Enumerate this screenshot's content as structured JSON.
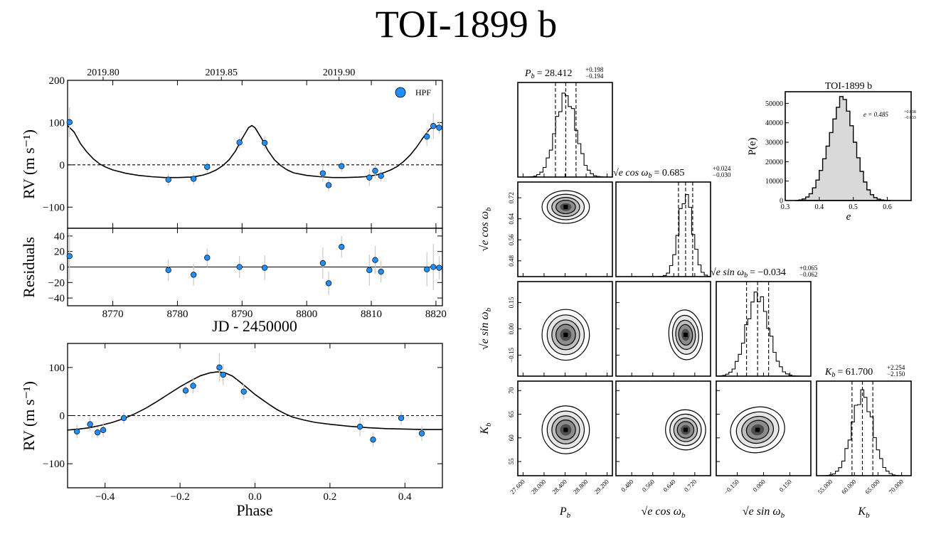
{
  "title": "TOI-1899 b",
  "colors": {
    "point": "#1e90ff",
    "model": "#000000",
    "hist_fill": "#d9d9d9",
    "error_bar": "#c8c8c8"
  },
  "labels": {
    "rv_ylabel": "RV (m s⁻¹)",
    "residuals_ylabel": "Residuals",
    "jd_xlabel": "JD - 2450000",
    "phase_xlabel": "Phase",
    "legend": "HPF",
    "e_title": "TOI-1899 b",
    "e_xlabel": "e",
    "e_ylabel": "P(e)",
    "e_annot": "e = 0.485",
    "e_sup": "+0.038",
    "e_sub": "−0.033",
    "corner_P": "P",
    "corner_K": "K",
    "corner_sub": "b",
    "corner_ecos": "√e cos ω",
    "corner_esin": "√e sin ω",
    "title_P_val": "= 28.412",
    "title_P_sup": "+0.198",
    "title_P_sub": "−0.194",
    "title_ecos_val": "= 0.685",
    "title_ecos_sup": "+0.024",
    "title_ecos_sub": "−0.030",
    "title_esin_val": "= −0.034",
    "title_esin_sup": "+0.065",
    "title_esin_sub": "−0.062",
    "title_K_val": "= 61.700",
    "title_K_sup": "+2.254",
    "title_K_sub": "−2.150"
  },
  "chart_data": [
    {
      "type": "scatter",
      "panel": "rv_time",
      "xlim": [
        8763,
        8821
      ],
      "ylim": [
        -150,
        200
      ],
      "yticks": [
        -100,
        0,
        100,
        200
      ],
      "xticks": [
        8770,
        8780,
        8790,
        8800,
        8810,
        8820
      ],
      "top_axis_ticks": [
        {
          "x": 8768.5,
          "label": "2019.80"
        },
        {
          "x": 8786.8,
          "label": "2019.85"
        },
        {
          "x": 8805.0,
          "label": "2019.90"
        }
      ],
      "series": [
        {
          "name": "HPF",
          "points": [
            [
              8763.3,
              101,
              35
            ],
            [
              8778.6,
              -35,
              14
            ],
            [
              8782.5,
              -33,
              14
            ],
            [
              8784.6,
              -5,
              12
            ],
            [
              8789.6,
              53,
              14
            ],
            [
              8793.5,
              52,
              16
            ],
            [
              8802.5,
              -20,
              20
            ],
            [
              8803.4,
              -48,
              15
            ],
            [
              8805.4,
              -3,
              14
            ],
            [
              8809.7,
              -30,
              20
            ],
            [
              8810.6,
              -14,
              18
            ],
            [
              8811.5,
              -26,
              14
            ],
            [
              8818.6,
              67,
              22
            ],
            [
              8819.6,
              92,
              30
            ],
            [
              8820.5,
              88,
              15
            ]
          ]
        }
      ],
      "model": [
        [
          8763,
          93
        ],
        [
          8764,
          78
        ],
        [
          8765,
          50
        ],
        [
          8766,
          30
        ],
        [
          8767,
          14
        ],
        [
          8768,
          2
        ],
        [
          8769,
          -6
        ],
        [
          8770,
          -12
        ],
        [
          8772,
          -20
        ],
        [
          8774,
          -25
        ],
        [
          8776,
          -28
        ],
        [
          8778,
          -30
        ],
        [
          8780,
          -30
        ],
        [
          8782,
          -29
        ],
        [
          8783,
          -27
        ],
        [
          8784,
          -24
        ],
        [
          8785,
          -19
        ],
        [
          8786,
          -12
        ],
        [
          8787,
          -2
        ],
        [
          8788,
          12
        ],
        [
          8789,
          33
        ],
        [
          8790,
          62
        ],
        [
          8791,
          88
        ],
        [
          8791.5,
          93
        ],
        [
          8792,
          88
        ],
        [
          8793,
          63
        ],
        [
          8794,
          34
        ],
        [
          8795,
          12
        ],
        [
          8796,
          -2
        ],
        [
          8797,
          -12
        ],
        [
          8798,
          -19
        ],
        [
          8800,
          -25
        ],
        [
          8802,
          -28
        ],
        [
          8804,
          -30
        ],
        [
          8806,
          -30
        ],
        [
          8808,
          -29
        ],
        [
          8809,
          -28
        ],
        [
          8810,
          -26
        ],
        [
          8811,
          -23
        ],
        [
          8812,
          -18
        ],
        [
          8813,
          -12
        ],
        [
          8814,
          -4
        ],
        [
          8815,
          8
        ],
        [
          8816,
          23
        ],
        [
          8817,
          42
        ],
        [
          8818,
          64
        ],
        [
          8819,
          84
        ],
        [
          8819.8,
          93
        ],
        [
          8820.5,
          90
        ],
        [
          8821,
          86
        ]
      ]
    },
    {
      "type": "scatter",
      "panel": "residuals",
      "xlim": [
        8763,
        8821
      ],
      "ylim": [
        -50,
        50
      ],
      "yticks": [
        -40,
        -20,
        0,
        20,
        40
      ],
      "xticks": [
        8770,
        8780,
        8790,
        8800,
        8810,
        8820
      ],
      "points": [
        [
          8763.3,
          14,
          30
        ],
        [
          8778.6,
          -4,
          14
        ],
        [
          8782.5,
          -10,
          14
        ],
        [
          8784.6,
          12,
          12
        ],
        [
          8789.6,
          0,
          14
        ],
        [
          8793.5,
          -1,
          16
        ],
        [
          8802.5,
          5,
          20
        ],
        [
          8803.4,
          -21,
          15
        ],
        [
          8805.4,
          26,
          14
        ],
        [
          8809.7,
          -4,
          20
        ],
        [
          8810.6,
          9,
          18
        ],
        [
          8811.5,
          -6,
          14
        ],
        [
          8818.6,
          -3,
          22
        ],
        [
          8819.6,
          0,
          30
        ],
        [
          8820.5,
          -1,
          15
        ]
      ]
    },
    {
      "type": "scatter",
      "panel": "rv_phase",
      "xlim": [
        -0.5,
        0.5
      ],
      "ylim": [
        -150,
        150
      ],
      "yticks": [
        -100,
        0,
        100
      ],
      "xticks": [
        -0.4,
        -0.2,
        0.0,
        0.2,
        0.4
      ],
      "points": [
        [
          -0.475,
          -33,
          14
        ],
        [
          -0.44,
          -18,
          14
        ],
        [
          -0.42,
          -35,
          12
        ],
        [
          -0.405,
          -30,
          14
        ],
        [
          -0.35,
          -5,
          12
        ],
        [
          -0.185,
          52,
          14
        ],
        [
          -0.165,
          62,
          16
        ],
        [
          -0.095,
          100,
          30
        ],
        [
          -0.085,
          85,
          22
        ],
        [
          -0.03,
          50,
          16
        ],
        [
          0.28,
          -23,
          20
        ],
        [
          0.315,
          -50,
          15
        ],
        [
          0.39,
          -5,
          14
        ],
        [
          0.445,
          -37,
          15
        ]
      ],
      "model": [
        [
          -0.5,
          -30
        ],
        [
          -0.47,
          -28
        ],
        [
          -0.44,
          -25
        ],
        [
          -0.41,
          -20
        ],
        [
          -0.38,
          -14
        ],
        [
          -0.35,
          -6
        ],
        [
          -0.32,
          4
        ],
        [
          -0.29,
          16
        ],
        [
          -0.26,
          30
        ],
        [
          -0.23,
          45
        ],
        [
          -0.2,
          60
        ],
        [
          -0.17,
          73
        ],
        [
          -0.145,
          83
        ],
        [
          -0.12,
          89
        ],
        [
          -0.1,
          91
        ],
        [
          -0.08,
          89
        ],
        [
          -0.06,
          82
        ],
        [
          -0.04,
          70
        ],
        [
          -0.02,
          57
        ],
        [
          0.0,
          44
        ],
        [
          0.02,
          33
        ],
        [
          0.04,
          22
        ],
        [
          0.06,
          12
        ],
        [
          0.08,
          4
        ],
        [
          0.1,
          -3
        ],
        [
          0.13,
          -9
        ],
        [
          0.16,
          -14
        ],
        [
          0.2,
          -18
        ],
        [
          0.25,
          -22
        ],
        [
          0.3,
          -25
        ],
        [
          0.35,
          -27
        ],
        [
          0.4,
          -28
        ],
        [
          0.45,
          -29
        ],
        [
          0.5,
          -29
        ]
      ]
    },
    {
      "type": "bar",
      "panel": "eccentricity_histogram",
      "xlim": [
        0.3,
        0.67
      ],
      "ylim": [
        0,
        56000
      ],
      "xticks": [
        0.3,
        0.4,
        0.5,
        0.6
      ],
      "yticks": [
        0,
        10000,
        20000,
        30000,
        40000,
        50000
      ],
      "bin_start": 0.33,
      "bin_width": 0.01,
      "values": [
        0,
        300,
        800,
        1800,
        3500,
        6500,
        10500,
        15500,
        21500,
        28000,
        35000,
        42000,
        48000,
        53500,
        52000,
        46000,
        38500,
        30000,
        22000,
        15000,
        9500,
        5500,
        3000,
        1500,
        700,
        300,
        100,
        0
      ]
    },
    {
      "type": "heatmap",
      "panel": "corner_plot",
      "parameters": [
        "P_b",
        "sqrt(e)cos(omega_b)",
        "sqrt(e)sin(omega_b)",
        "K_b"
      ],
      "medians": [
        28.412,
        0.685,
        -0.034,
        61.7
      ],
      "sigmas": [
        0.196,
        0.027,
        0.063,
        2.2
      ],
      "correlations": [
        [
          0,
          0,
          0,
          0
        ],
        [
          0,
          0,
          0.05,
          0.45
        ],
        [
          0,
          0.05,
          0,
          0.15
        ],
        [
          0,
          0.45,
          0.15,
          0
        ]
      ],
      "limits": [
        [
          27.5,
          29.3
        ],
        [
          0.42,
          0.78
        ],
        [
          -0.27,
          0.27
        ],
        [
          52,
          72
        ]
      ],
      "ticks": [
        {
          "values": [
            27.6,
            28.0,
            28.4,
            28.8,
            29.2
          ],
          "labels": [
            "27.600",
            "28.000",
            "28.400",
            "28.800",
            "29.200"
          ]
        },
        {
          "values": [
            0.48,
            0.56,
            0.64,
            0.72
          ],
          "labels": [
            "0.48",
            "0.56",
            "0.64",
            "0.72"
          ],
          "xlabels": [
            "0.480",
            "0.560",
            "0.640",
            "0.720"
          ]
        },
        {
          "values": [
            -0.15,
            0.0,
            0.15
          ],
          "labels": [
            "−0.15",
            "0.00",
            "0.15"
          ],
          "xlabels": [
            "−0.150",
            "0.000",
            "0.150"
          ]
        },
        {
          "values": [
            55,
            60,
            65,
            70
          ],
          "labels": [
            "55",
            "60",
            "65",
            "70"
          ],
          "xlabels": [
            "55.000",
            "60.000",
            "65.000",
            "70.000"
          ]
        }
      ]
    }
  ]
}
